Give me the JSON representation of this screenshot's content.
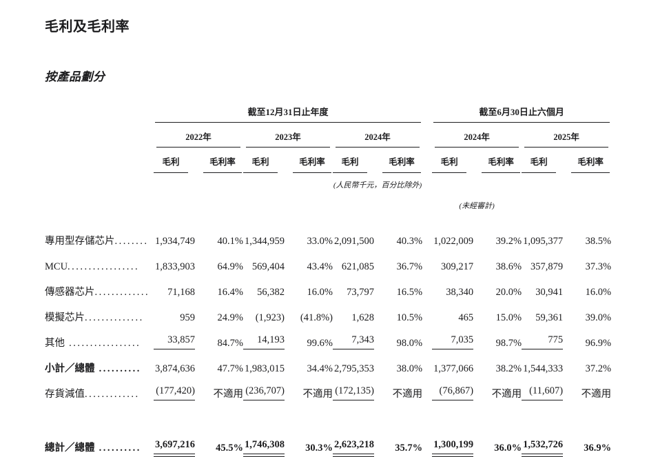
{
  "page": {
    "title": "毛利及毛利率",
    "subtitle": "按產品劃分"
  },
  "table": {
    "group_headers": [
      {
        "label": "截至12月31日止年度"
      },
      {
        "label": "截至6月30日止六個月"
      }
    ],
    "year_headers": [
      "2022年",
      "2023年",
      "2024年",
      "2024年",
      "2025年"
    ],
    "col_headers": {
      "profit": "毛利",
      "margin": "毛利率"
    },
    "notes": {
      "units": "(人民幣千元，百分比除外)",
      "unaudited": "(未經審計)"
    },
    "rows": [
      {
        "label": "專用型存儲芯片",
        "dots": "........",
        "cells": [
          "1,934,749",
          "40.1%",
          "1,344,959",
          "33.0%",
          "2,091,500",
          "40.3%",
          "1,022,009",
          "39.2%",
          "1,095,377",
          "38.5%"
        ]
      },
      {
        "label": "MCU",
        "dots": ".................",
        "cells": [
          "1,833,903",
          "64.9%",
          "569,404",
          "43.4%",
          "621,085",
          "36.7%",
          "309,217",
          "38.6%",
          "357,879",
          "37.3%"
        ]
      },
      {
        "label": "傳感器芯片",
        "dots": ".............",
        "cells": [
          "71,168",
          "16.4%",
          "56,382",
          "16.0%",
          "73,797",
          "16.5%",
          "38,340",
          "20.0%",
          "30,941",
          "16.0%"
        ]
      },
      {
        "label": "模擬芯片",
        "dots": "..............",
        "cells": [
          "959",
          "24.9%",
          "(1,923)",
          "(41.8%)",
          "1,628",
          "10.5%",
          "465",
          "15.0%",
          "59,361",
          "39.0%"
        ]
      },
      {
        "label": "其他",
        "dots": " .................",
        "underline": "single",
        "cells": [
          "33,857",
          "84.7%",
          "14,193",
          "99.6%",
          "7,343",
          "98.0%",
          "7,035",
          "98.7%",
          "775",
          "96.9%"
        ]
      },
      {
        "label": "小計／總體",
        "dots": " ..........",
        "label_bold": true,
        "cells": [
          "3,874,636",
          "47.7%",
          "1,983,015",
          "34.4%",
          "2,795,353",
          "38.0%",
          "1,377,066",
          "38.2%",
          "1,544,333",
          "37.2%"
        ]
      },
      {
        "label": "存貨減值",
        "dots": ".............",
        "underline": "single",
        "cells": [
          "(177,420)",
          "不適用",
          "(236,707)",
          "不適用",
          "(172,135)",
          "不適用",
          "(76,867)",
          "不適用",
          "(11,607)",
          "不適用"
        ]
      },
      {
        "label": "總計／總體",
        "dots": " ..........",
        "underline": "double",
        "bold": true,
        "gap_before": true,
        "cells": [
          "3,697,216",
          "45.5%",
          "1,746,308",
          "30.3%",
          "2,623,218",
          "35.7%",
          "1,300,199",
          "36.0%",
          "1,532,726",
          "36.9%"
        ]
      }
    ]
  }
}
